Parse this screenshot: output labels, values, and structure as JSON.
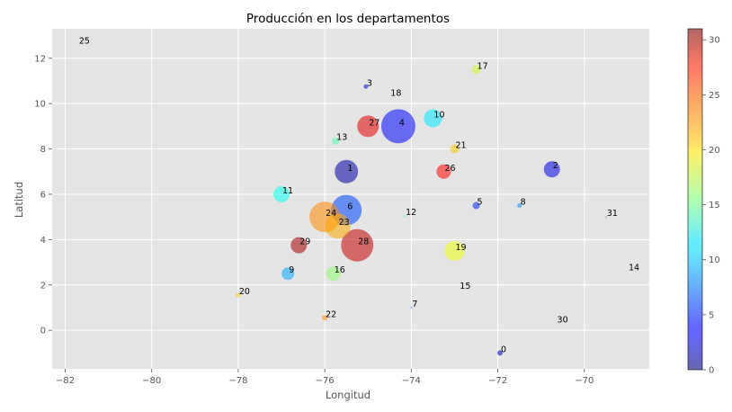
{
  "chart_data": {
    "type": "scatter",
    "title": "Producción en los departamentos",
    "xlabel": "Longitud",
    "ylabel": "Latitud",
    "xlim": [
      -82.3,
      -68.5
    ],
    "ylim": [
      -1.7,
      13.3
    ],
    "xticks": [
      -82,
      -80,
      -78,
      -76,
      -74,
      -72,
      -70
    ],
    "yticks": [
      0,
      2,
      4,
      6,
      8,
      10,
      12
    ],
    "xtick_labels": [
      "−82",
      "−80",
      "−78",
      "−76",
      "−74",
      "−72",
      "−70"
    ],
    "ytick_labels": [
      "0",
      "2",
      "4",
      "6",
      "8",
      "10",
      "12"
    ],
    "grid": true,
    "background": "#e5e5e5",
    "colormap": "jet",
    "colorbar": {
      "min": 0,
      "max": 31,
      "ticks": [
        0,
        5,
        10,
        15,
        20,
        25,
        30
      ],
      "tick_labels": [
        "0",
        "5",
        "10",
        "15",
        "20",
        "25",
        "30"
      ]
    },
    "points": [
      {
        "id": "0",
        "x": -71.95,
        "y": -1.0,
        "c": 2,
        "size": 3
      },
      {
        "id": "1",
        "x": -75.5,
        "y": 7.0,
        "c": 1,
        "size": 13
      },
      {
        "id": "2",
        "x": -70.75,
        "y": 7.1,
        "c": 3,
        "size": 9
      },
      {
        "id": "3",
        "x": -75.05,
        "y": 10.75,
        "c": 4,
        "size": 2.5
      },
      {
        "id": "4",
        "x": -74.3,
        "y": 9.0,
        "c": 4,
        "size": 19
      },
      {
        "id": "5",
        "x": -72.5,
        "y": 5.5,
        "c": 5,
        "size": 4
      },
      {
        "id": "6",
        "x": -75.5,
        "y": 5.3,
        "c": 6,
        "size": 17
      },
      {
        "id": "7",
        "x": -74.0,
        "y": 1.0,
        "c": 7,
        "size": 0.8
      },
      {
        "id": "8",
        "x": -71.5,
        "y": 5.5,
        "c": 8,
        "size": 2.5
      },
      {
        "id": "9",
        "x": -76.85,
        "y": 2.5,
        "c": 9,
        "size": 7
      },
      {
        "id": "10",
        "x": -73.5,
        "y": 9.35,
        "c": 11,
        "size": 10
      },
      {
        "id": "11",
        "x": -77.0,
        "y": 6.0,
        "c": 12,
        "size": 9
      },
      {
        "id": "12",
        "x": -74.15,
        "y": 5.05,
        "c": 13,
        "size": 1.2
      },
      {
        "id": "13",
        "x": -75.75,
        "y": 8.35,
        "c": 14,
        "size": 4
      },
      {
        "id": "14",
        "x": -69.0,
        "y": 2.6,
        "c": 14,
        "size": 0
      },
      {
        "id": "15",
        "x": -72.9,
        "y": 1.8,
        "c": 15,
        "size": 0
      },
      {
        "id": "16",
        "x": -75.8,
        "y": 2.5,
        "c": 16,
        "size": 8
      },
      {
        "id": "17",
        "x": -72.5,
        "y": 11.5,
        "c": 18,
        "size": 5
      },
      {
        "id": "18",
        "x": -74.5,
        "y": 10.3,
        "c": 19,
        "size": 0
      },
      {
        "id": "19",
        "x": -73.0,
        "y": 3.5,
        "c": 19,
        "size": 11
      },
      {
        "id": "20",
        "x": -78.0,
        "y": 1.55,
        "c": 21,
        "size": 2.5
      },
      {
        "id": "21",
        "x": -73.0,
        "y": 8.0,
        "c": 21,
        "size": 5
      },
      {
        "id": "22",
        "x": -76.0,
        "y": 0.55,
        "c": 23,
        "size": 3
      },
      {
        "id": "23",
        "x": -75.7,
        "y": 4.6,
        "c": 22,
        "size": 14
      },
      {
        "id": "24",
        "x": -76.0,
        "y": 5.0,
        "c": 23,
        "size": 17
      },
      {
        "id": "25",
        "x": -81.7,
        "y": 12.6,
        "c": 25,
        "size": 0
      },
      {
        "id": "26",
        "x": -73.25,
        "y": 7.0,
        "c": 27,
        "size": 8
      },
      {
        "id": "27",
        "x": -75.0,
        "y": 9.0,
        "c": 28,
        "size": 12
      },
      {
        "id": "28",
        "x": -75.25,
        "y": 3.75,
        "c": 29,
        "size": 18
      },
      {
        "id": "29",
        "x": -76.6,
        "y": 3.75,
        "c": 30,
        "size": 9
      },
      {
        "id": "30",
        "x": -70.65,
        "y": 0.3,
        "c": 30,
        "size": 0
      },
      {
        "id": "31",
        "x": -69.5,
        "y": 5.0,
        "c": 31,
        "size": 0.6
      }
    ]
  }
}
